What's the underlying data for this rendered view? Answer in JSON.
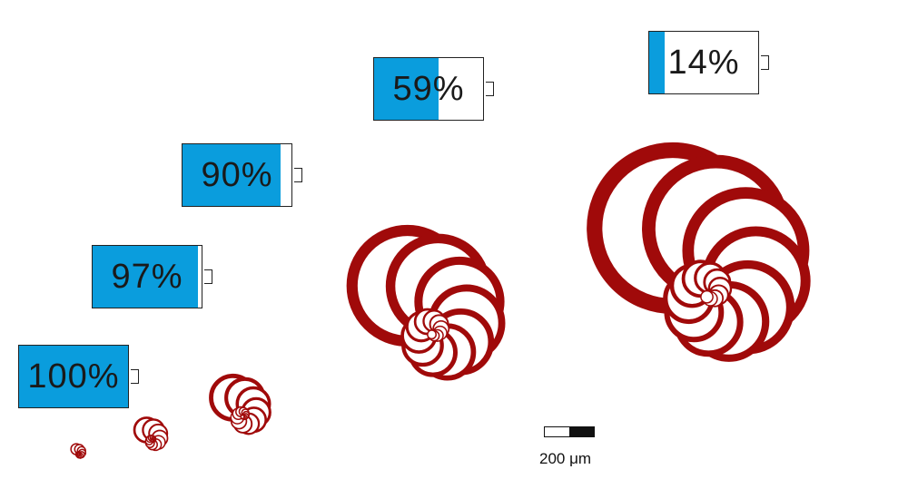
{
  "colors": {
    "battery_fill": "#0a9ddd",
    "shell": "#a00a0a"
  },
  "batteries": [
    {
      "label": "100%",
      "level": 100
    },
    {
      "label": "97%",
      "level": 97
    },
    {
      "label": "90%",
      "level": 90
    },
    {
      "label": "59%",
      "level": 59
    },
    {
      "label": "14%",
      "level": 14
    }
  ],
  "scale_bar": {
    "label": "200 μm"
  }
}
